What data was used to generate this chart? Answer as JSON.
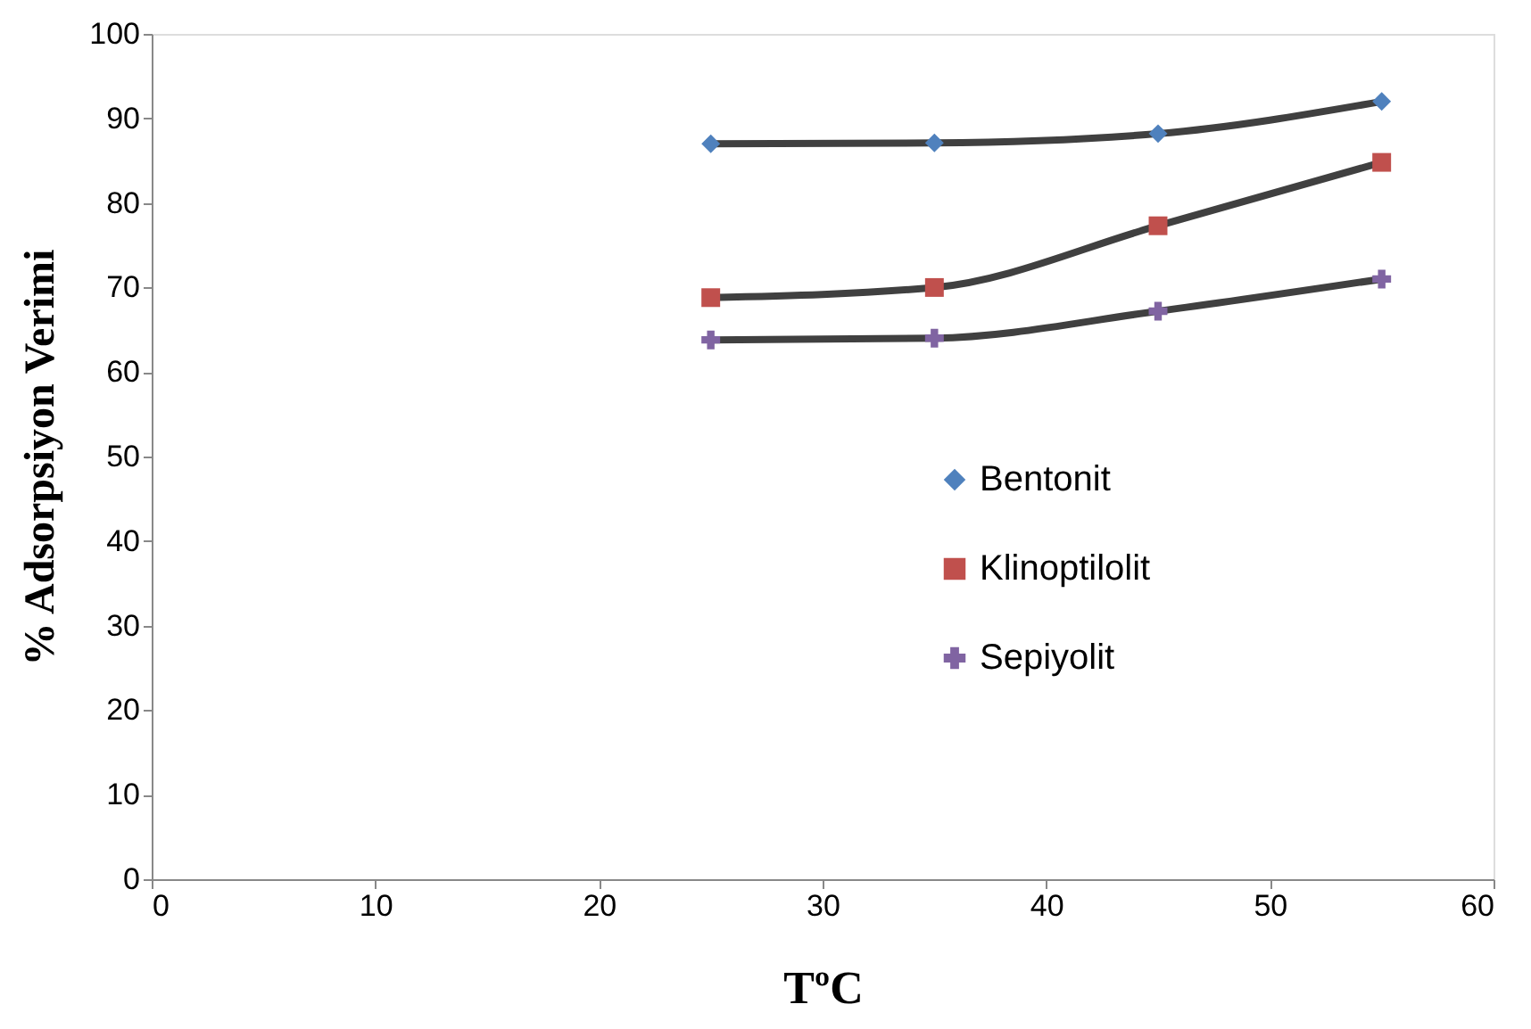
{
  "chart_data": {
    "type": "line",
    "xlabel": "TºC",
    "ylabel": "% Adsorpsiyon Verimi",
    "x": [
      25,
      35,
      45,
      55
    ],
    "series": [
      {
        "name": "Bentonit",
        "color": "#4f81bd",
        "marker": "diamond",
        "values": [
          87,
          87.1,
          88.2,
          92
        ]
      },
      {
        "name": "Klinoptilolit",
        "color": "#c0504d",
        "marker": "square",
        "values": [
          68.8,
          70,
          77.3,
          84.8
        ]
      },
      {
        "name": "Sepiyolit",
        "color": "#8064a2",
        "marker": "cross",
        "values": [
          63.8,
          64,
          67.2,
          71
        ]
      }
    ],
    "xlim": [
      0,
      60
    ],
    "xticks": [
      0,
      10,
      20,
      30,
      40,
      50,
      60
    ],
    "ylim": [
      0,
      100
    ],
    "yticks": [
      0,
      10,
      20,
      30,
      40,
      50,
      60,
      70,
      80,
      90,
      100
    ],
    "grid": false,
    "legend": "right",
    "line_style": "solid"
  }
}
